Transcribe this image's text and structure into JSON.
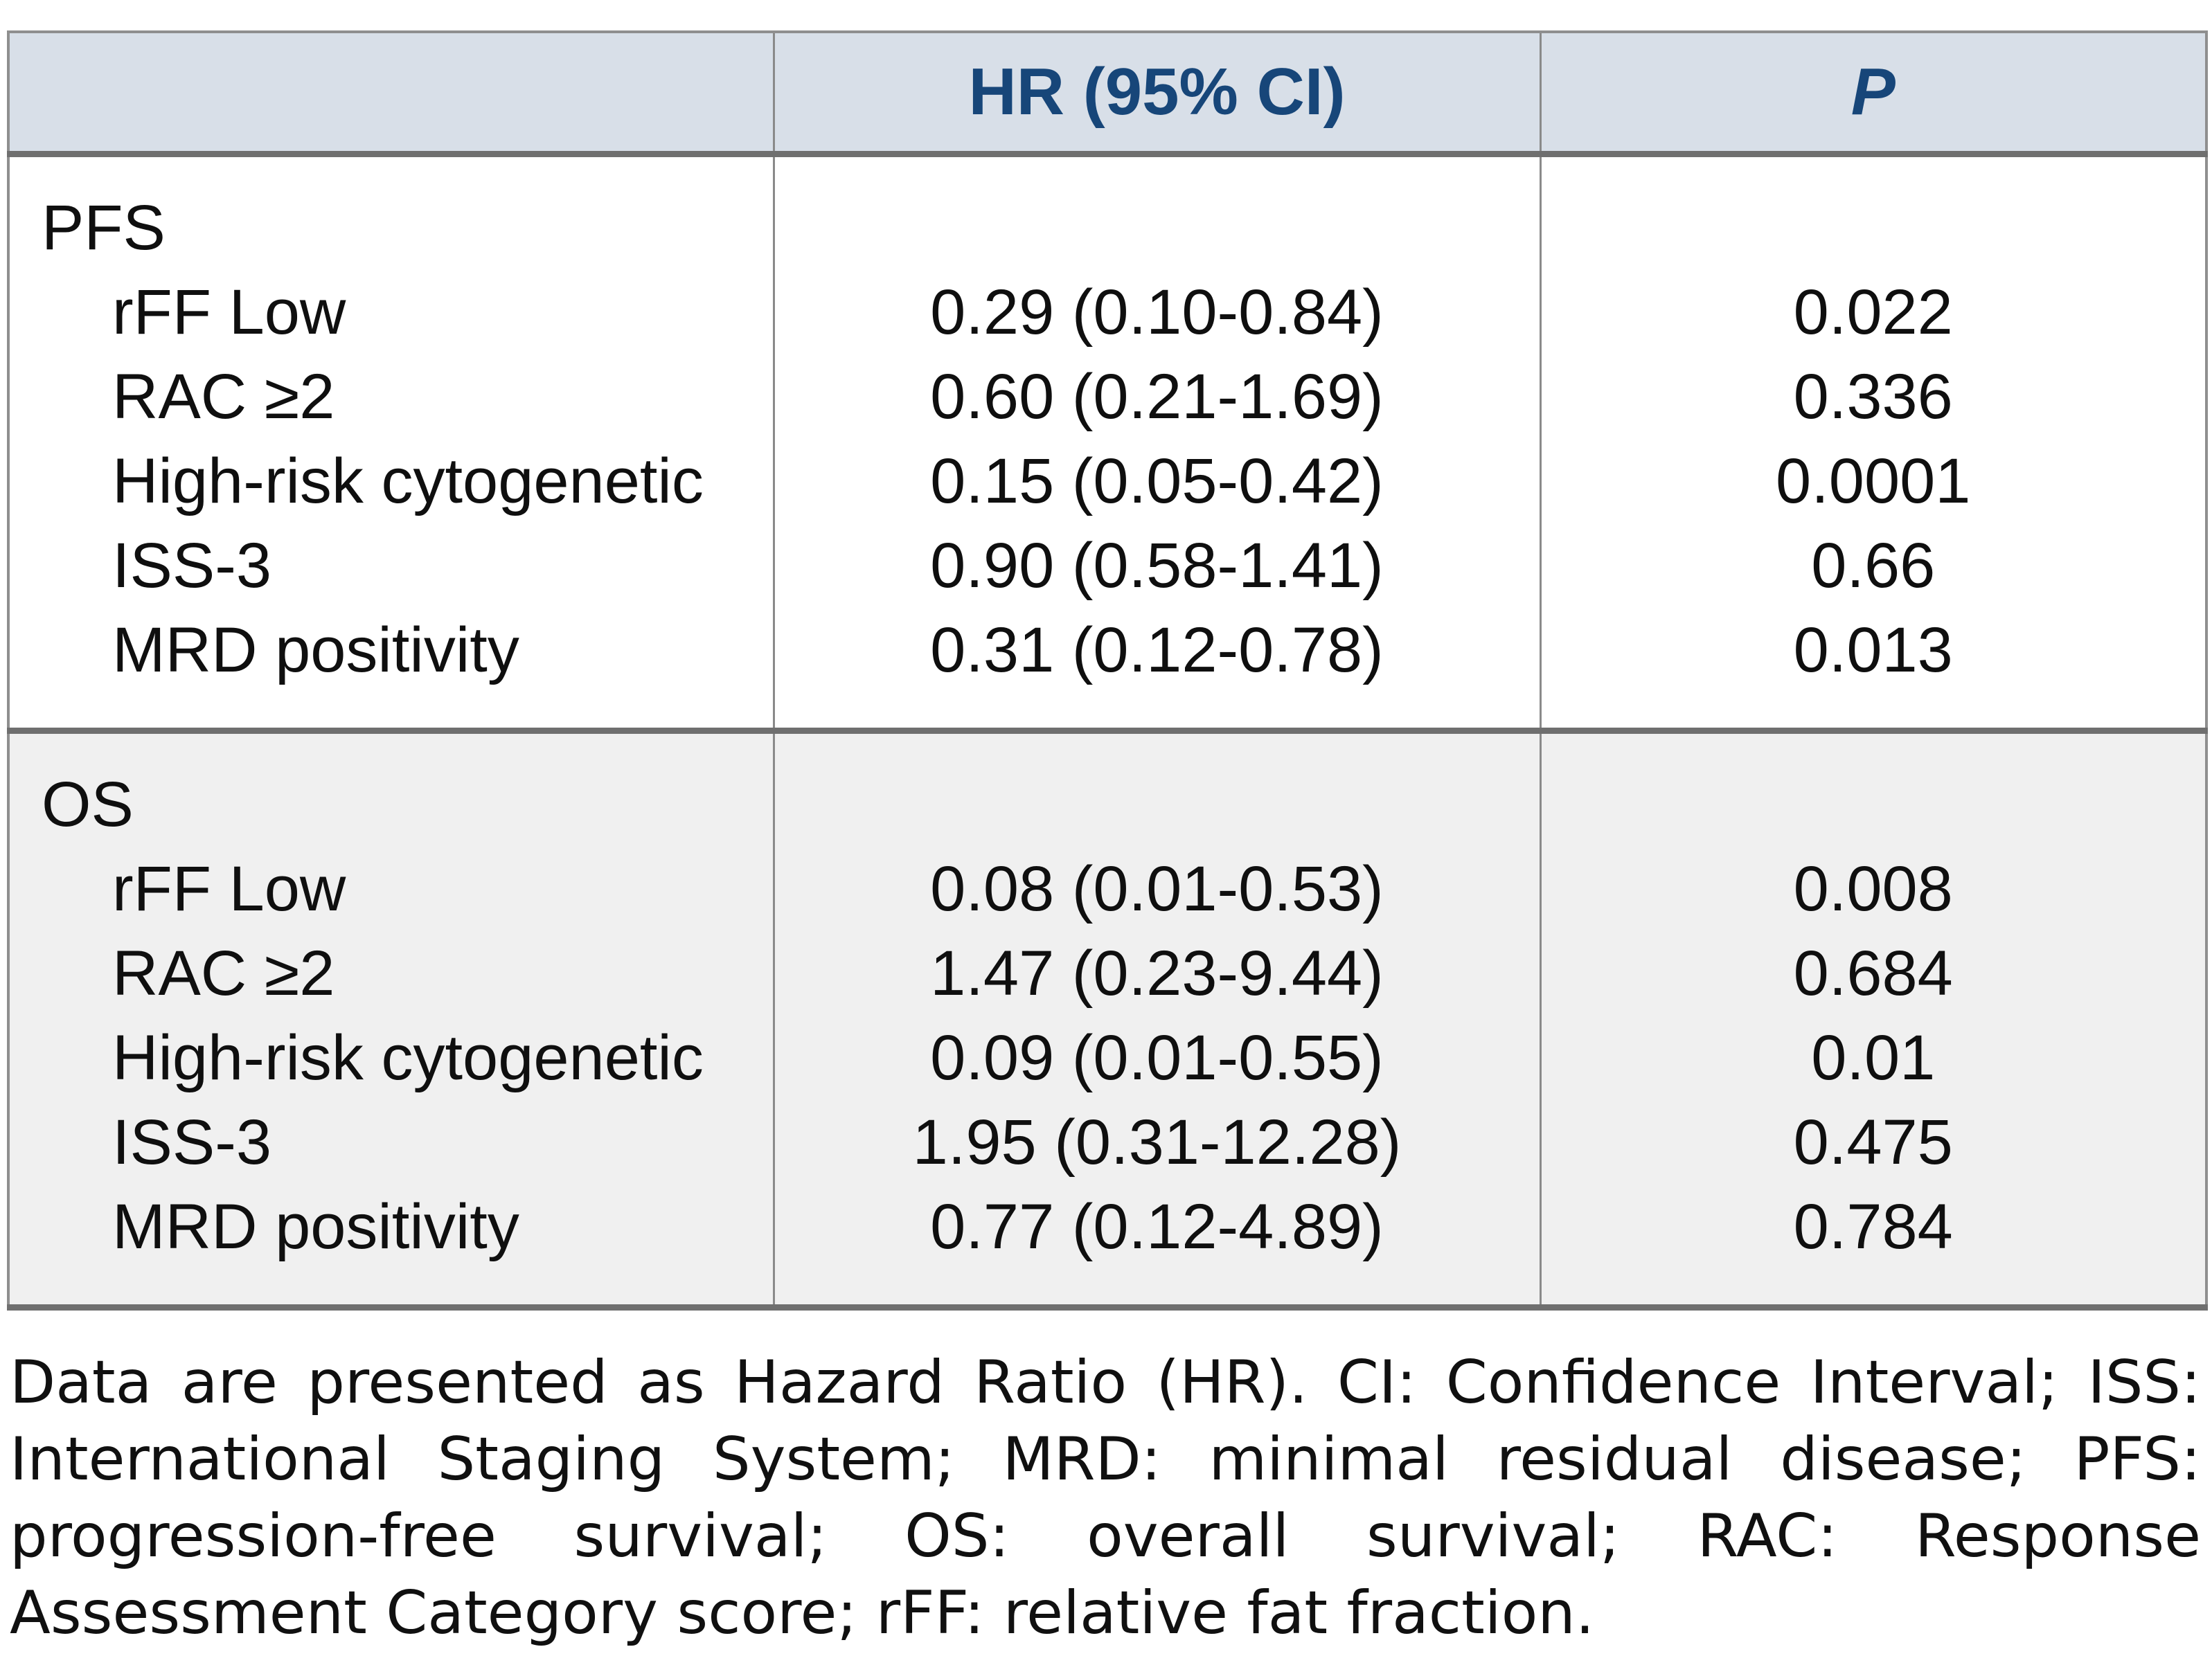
{
  "table": {
    "columns": {
      "label": "",
      "hr": "HR (95% CI)",
      "p": "P"
    },
    "sections": [
      {
        "title": "PFS",
        "rows": [
          {
            "label": "rFF Low",
            "hr": "0.29 (0.10-0.84)",
            "p": "0.022"
          },
          {
            "label": "RAC ≥2",
            "hr": "0.60 (0.21-1.69)",
            "p": "0.336"
          },
          {
            "label": "High-risk cytogenetic",
            "hr": "0.15 (0.05-0.42)",
            "p": "0.0001"
          },
          {
            "label": "ISS-3",
            "hr": "0.90 (0.58-1.41)",
            "p": "0.66"
          },
          {
            "label": "MRD positivity",
            "hr": "0.31 (0.12-0.78)",
            "p": "0.013"
          }
        ]
      },
      {
        "title": "OS",
        "rows": [
          {
            "label": "rFF Low",
            "hr": "0.08 (0.01-0.53)",
            "p": "0.008"
          },
          {
            "label": "RAC ≥2",
            "hr": "1.47 (0.23-9.44)",
            "p": "0.684"
          },
          {
            "label": "High-risk cytogenetic",
            "hr": "0.09 (0.01-0.55)",
            "p": "0.01"
          },
          {
            "label": "ISS-3",
            "hr": "1.95 (0.31-12.28)",
            "p": "0.475"
          },
          {
            "label": "MRD positivity",
            "hr": "0.77 (0.12-4.89)",
            "p": "0.784"
          }
        ]
      }
    ]
  },
  "footnote": {
    "text": "Data are presented as Hazard Ratio (HR). CI: Confidence Interval; ISS: International Staging System; MRD: minimal residual disease; PFS: progression-free survival; OS: overall survival; RAC: Response Assessment Category score; rFF: relative fat fraction."
  },
  "colors": {
    "header_bg": "#d8dfe8",
    "header_text": "#174679",
    "os_section_bg": "#f0f0f0",
    "thick_border": "#6f6f6f",
    "thin_border": "#8a8a8a",
    "body_text": "#0f0f0f"
  }
}
